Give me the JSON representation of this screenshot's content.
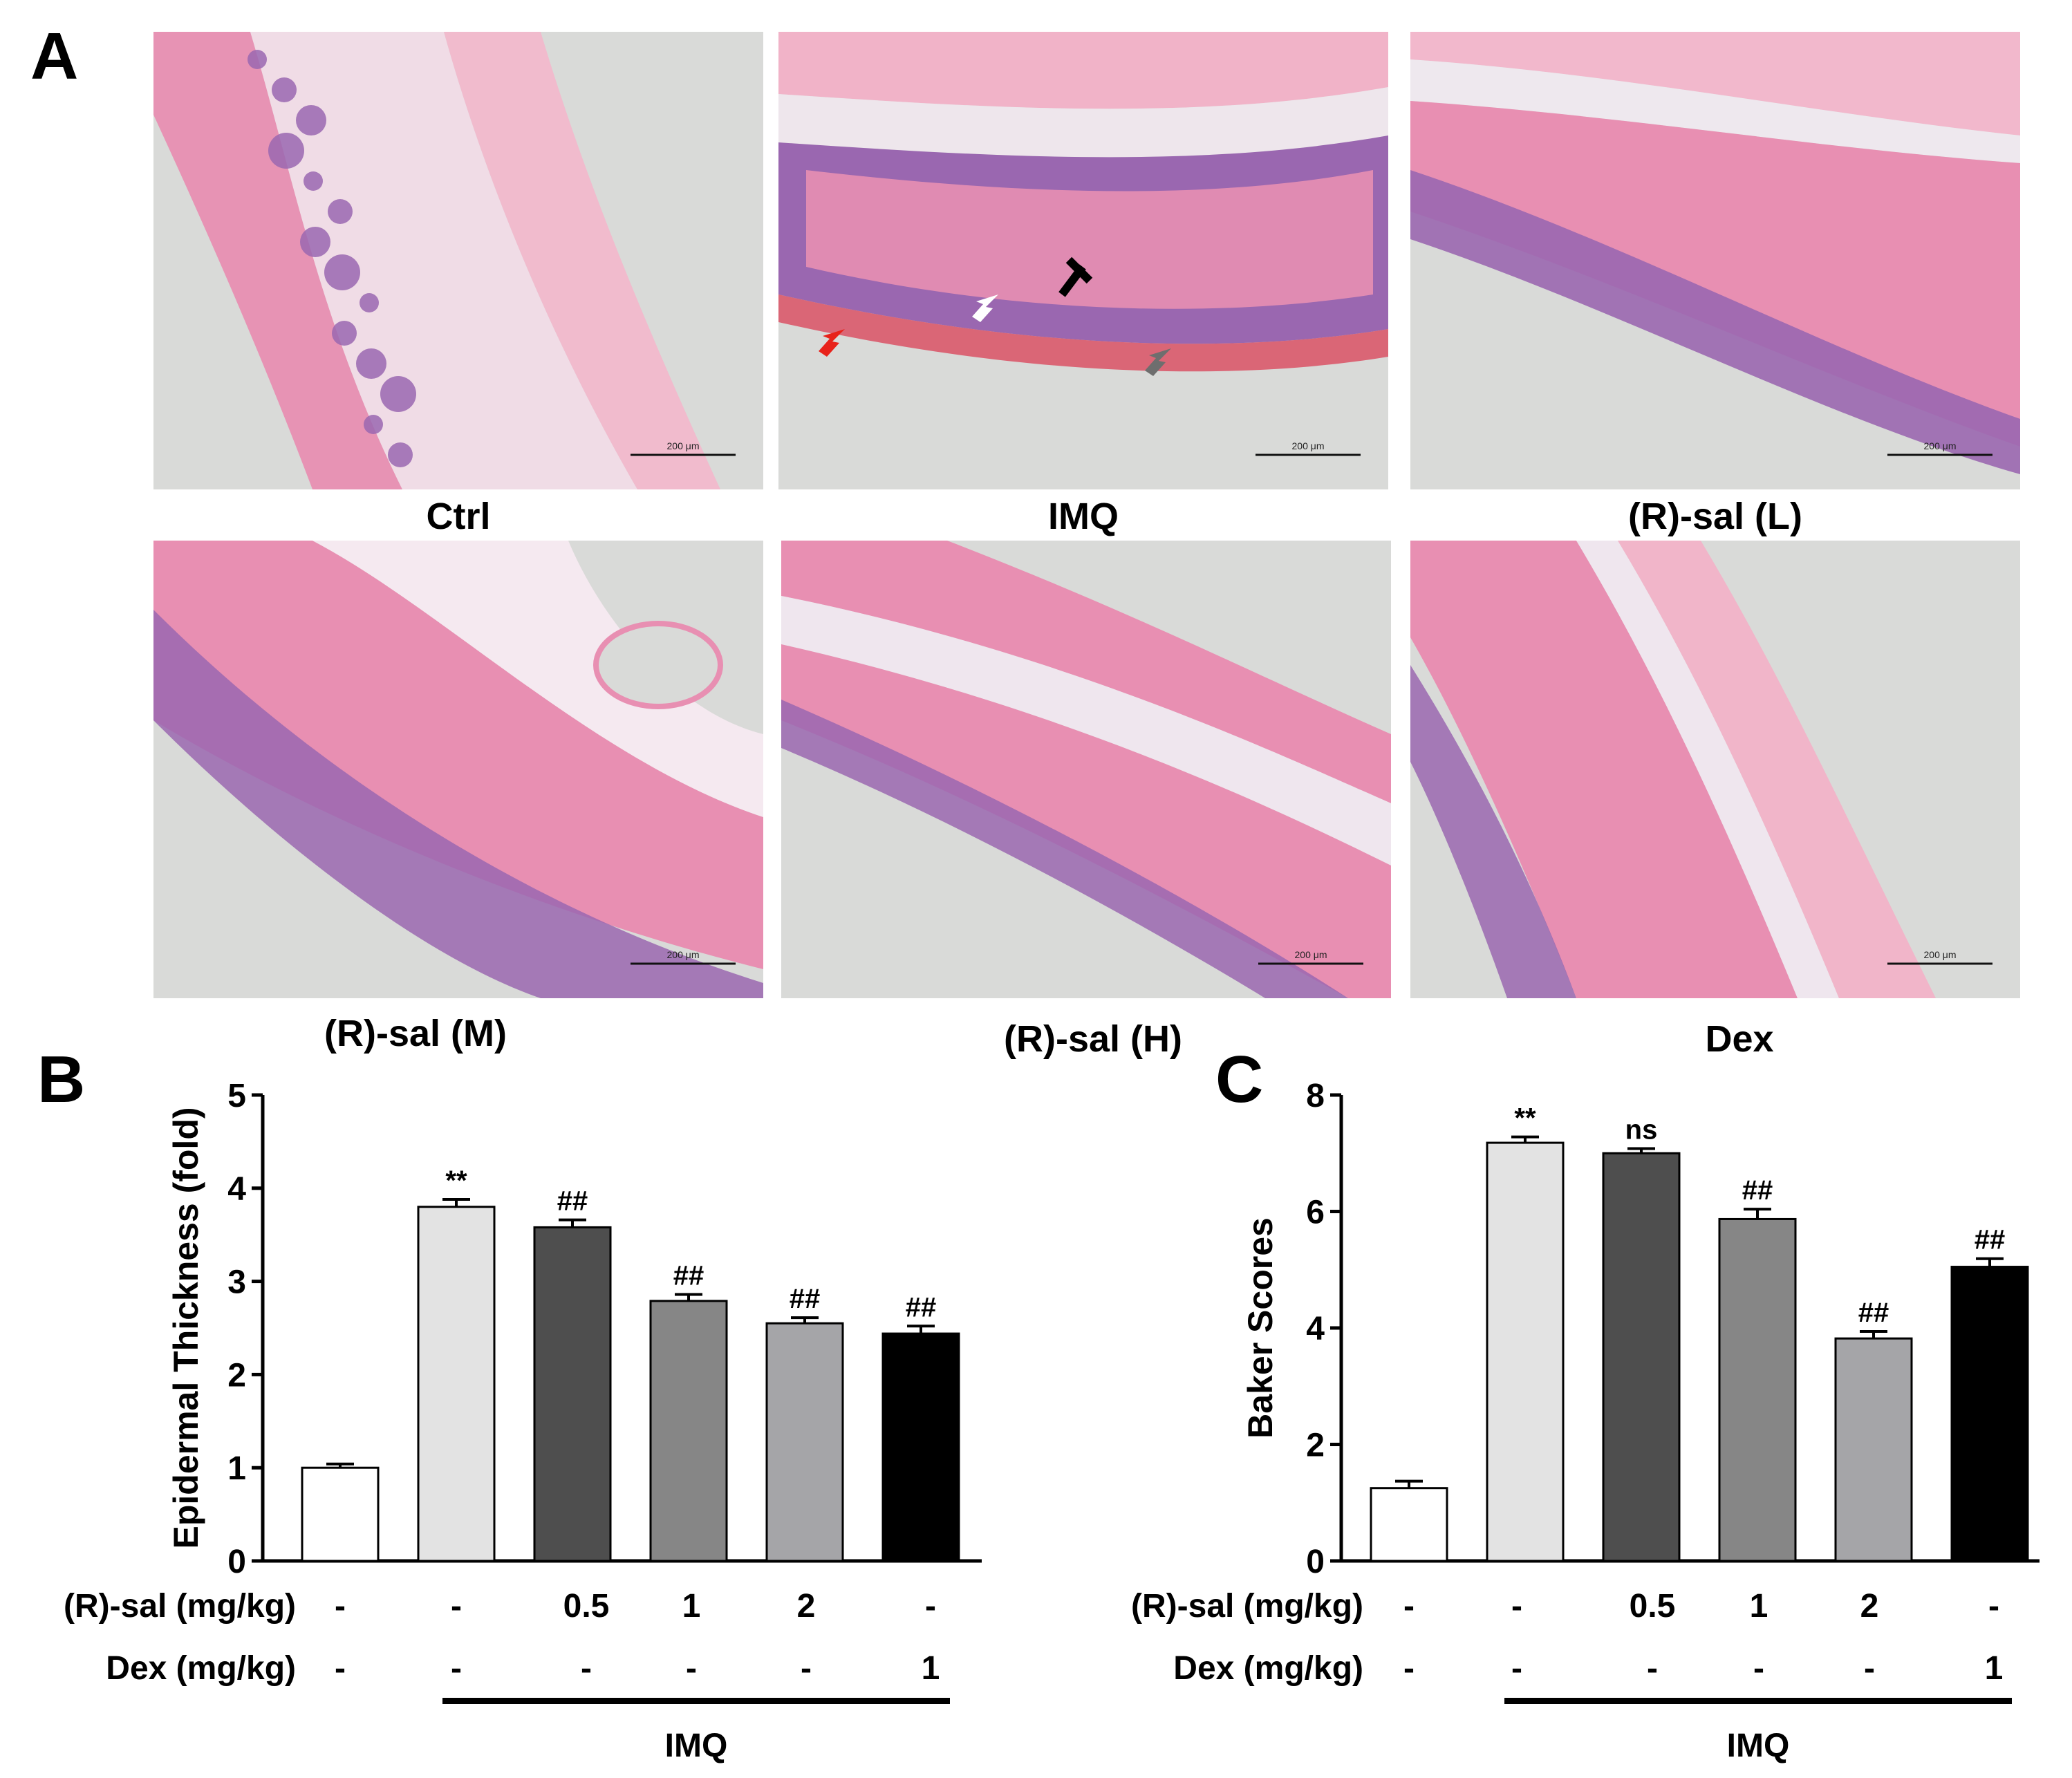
{
  "panel_labels": {
    "a": "A",
    "b": "B",
    "c": "C"
  },
  "micrographs": [
    {
      "caption": "Ctrl",
      "scale_bar": "200 μm"
    },
    {
      "caption": "IMQ",
      "scale_bar": "200 μm"
    },
    {
      "caption": "(R)-sal (L)",
      "scale_bar": "200 μm"
    },
    {
      "caption": "(R)-sal (M)",
      "scale_bar": "200 μm"
    },
    {
      "caption": "(R)-sal (H)",
      "scale_bar": "200 μm"
    },
    {
      "caption": "Dex",
      "scale_bar": "200 μm"
    }
  ],
  "arrow_colors": {
    "white": "#ffffff",
    "black": "#000000",
    "red": "#e8221a",
    "gray": "#6e6e6e"
  },
  "stain_colors": {
    "pink": "#e88fb2",
    "purple": "#9a67b0",
    "background": "#d9dad8"
  },
  "conditions": {
    "rsal_label": "(R)-sal (mg/kg)",
    "dex_label": "Dex (mg/kg)",
    "rsal_values": [
      "-",
      "-",
      "0.5",
      "1",
      "2",
      "-"
    ],
    "dex_values": [
      "-",
      "-",
      "-",
      "-",
      "-",
      "1"
    ],
    "group_label": "IMQ"
  },
  "chart_data": [
    {
      "type": "bar",
      "panel": "B",
      "title": "",
      "xlabel": "",
      "ylabel": "Epidermal Thickness (fold)",
      "ylim": [
        0,
        5
      ],
      "yticks": [
        "0",
        "1",
        "2",
        "3",
        "4",
        "5"
      ],
      "values": [
        1.0,
        3.8,
        3.58,
        2.79,
        2.55,
        2.44
      ],
      "errors": [
        0.04,
        0.08,
        0.08,
        0.07,
        0.06,
        0.08
      ],
      "annotations": [
        "",
        "**",
        "##",
        "##",
        "##",
        "##"
      ],
      "bar_colors": [
        "#ffffff",
        "#e3e3e3",
        "#4e4e4e",
        "#868686",
        "#a5a5a8",
        "#000000"
      ],
      "grid": false,
      "legend": "none"
    },
    {
      "type": "bar",
      "panel": "C",
      "title": "",
      "xlabel": "",
      "ylabel": "Baker Scores",
      "ylim": [
        0,
        8
      ],
      "yticks": [
        "0",
        "2",
        "4",
        "6",
        "8"
      ],
      "values": [
        1.25,
        7.18,
        7.0,
        5.87,
        3.82,
        5.05
      ],
      "errors": [
        0.12,
        0.1,
        0.08,
        0.17,
        0.12,
        0.14
      ],
      "annotations": [
        "",
        "**",
        "ns",
        "##",
        "##",
        "##"
      ],
      "bar_colors": [
        "#ffffff",
        "#e3e3e3",
        "#4e4e4e",
        "#868686",
        "#a5a5a8",
        "#000000"
      ],
      "grid": false,
      "legend": "none"
    }
  ]
}
